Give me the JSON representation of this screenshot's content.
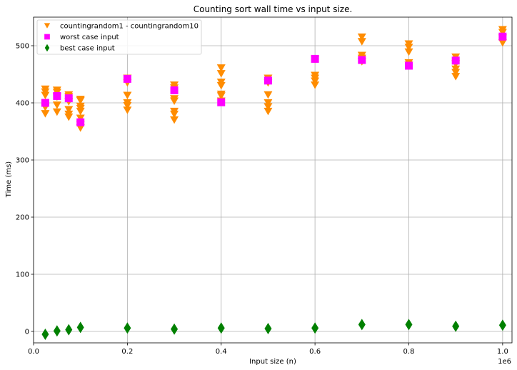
{
  "chart_data": {
    "type": "scatter",
    "title": "Counting sort wall time vs input size.",
    "xlabel": "Input size (n)",
    "ylabel": "Time (ms)",
    "x_offset_label": "1e6",
    "xlim": [
      0,
      1.02
    ],
    "ylim": [
      -20,
      550
    ],
    "x_ticks": [
      0.0,
      0.2,
      0.4,
      0.6,
      0.8,
      1.0
    ],
    "x_tick_labels": [
      "0.0",
      "0.2",
      "0.4",
      "0.6",
      "0.8",
      "1.0"
    ],
    "y_ticks": [
      0,
      100,
      200,
      300,
      400,
      500
    ],
    "y_tick_labels": [
      "0",
      "100",
      "200",
      "300",
      "400",
      "500"
    ],
    "grid": true,
    "legend_position": "top-left",
    "series": [
      {
        "name": "countingrandom1 - countingrandom10",
        "marker": "triangle-down",
        "color": "#ff8c00",
        "points": [
          [
            0.025,
            424
          ],
          [
            0.025,
            419
          ],
          [
            0.025,
            413
          ],
          [
            0.025,
            392
          ],
          [
            0.025,
            381
          ],
          [
            0.05,
            422
          ],
          [
            0.05,
            418
          ],
          [
            0.05,
            410
          ],
          [
            0.05,
            396
          ],
          [
            0.05,
            384
          ],
          [
            0.075,
            414
          ],
          [
            0.075,
            411
          ],
          [
            0.075,
            402
          ],
          [
            0.075,
            388
          ],
          [
            0.075,
            380
          ],
          [
            0.075,
            375
          ],
          [
            0.1,
            406
          ],
          [
            0.1,
            404
          ],
          [
            0.1,
            394
          ],
          [
            0.1,
            390
          ],
          [
            0.1,
            385
          ],
          [
            0.1,
            373
          ],
          [
            0.1,
            362
          ],
          [
            0.1,
            356
          ],
          [
            0.2,
            443
          ],
          [
            0.2,
            435
          ],
          [
            0.2,
            413
          ],
          [
            0.2,
            400
          ],
          [
            0.2,
            395
          ],
          [
            0.2,
            387
          ],
          [
            0.3,
            431
          ],
          [
            0.3,
            426
          ],
          [
            0.3,
            407
          ],
          [
            0.3,
            403
          ],
          [
            0.3,
            385
          ],
          [
            0.3,
            380
          ],
          [
            0.3,
            370
          ],
          [
            0.4,
            461
          ],
          [
            0.4,
            451
          ],
          [
            0.4,
            436
          ],
          [
            0.4,
            430
          ],
          [
            0.4,
            415
          ],
          [
            0.4,
            412
          ],
          [
            0.4,
            403
          ],
          [
            0.5,
            443
          ],
          [
            0.5,
            435
          ],
          [
            0.5,
            414
          ],
          [
            0.5,
            400
          ],
          [
            0.5,
            393
          ],
          [
            0.5,
            385
          ],
          [
            0.6,
            476
          ],
          [
            0.6,
            448
          ],
          [
            0.6,
            443
          ],
          [
            0.6,
            438
          ],
          [
            0.6,
            431
          ],
          [
            0.7,
            515
          ],
          [
            0.7,
            507
          ],
          [
            0.7,
            483
          ],
          [
            0.7,
            478
          ],
          [
            0.7,
            472
          ],
          [
            0.8,
            503
          ],
          [
            0.8,
            497
          ],
          [
            0.8,
            489
          ],
          [
            0.8,
            470
          ],
          [
            0.8,
            466
          ],
          [
            0.9,
            480
          ],
          [
            0.9,
            468
          ],
          [
            0.9,
            459
          ],
          [
            0.9,
            453
          ],
          [
            0.9,
            446
          ],
          [
            1.0,
            528
          ],
          [
            1.0,
            523
          ],
          [
            1.0,
            513
          ],
          [
            1.0,
            505
          ]
        ]
      },
      {
        "name": "worst case input",
        "marker": "square",
        "color": "#ff00ff",
        "points": [
          [
            0.025,
            400
          ],
          [
            0.05,
            412
          ],
          [
            0.075,
            408
          ],
          [
            0.1,
            366
          ],
          [
            0.2,
            442
          ],
          [
            0.3,
            422
          ],
          [
            0.4,
            401
          ],
          [
            0.5,
            439
          ],
          [
            0.6,
            477
          ],
          [
            0.7,
            475
          ],
          [
            0.8,
            465
          ],
          [
            0.9,
            474
          ],
          [
            1.0,
            516
          ]
        ]
      },
      {
        "name": "best case input",
        "marker": "thin-diamond",
        "color": "#008000",
        "points": [
          [
            0.025,
            -5
          ],
          [
            0.05,
            1
          ],
          [
            0.075,
            3
          ],
          [
            0.1,
            7
          ],
          [
            0.2,
            6
          ],
          [
            0.3,
            4
          ],
          [
            0.4,
            6
          ],
          [
            0.5,
            5
          ],
          [
            0.6,
            6
          ],
          [
            0.7,
            12
          ],
          [
            0.8,
            12
          ],
          [
            0.9,
            9
          ],
          [
            1.0,
            11
          ]
        ]
      }
    ]
  }
}
